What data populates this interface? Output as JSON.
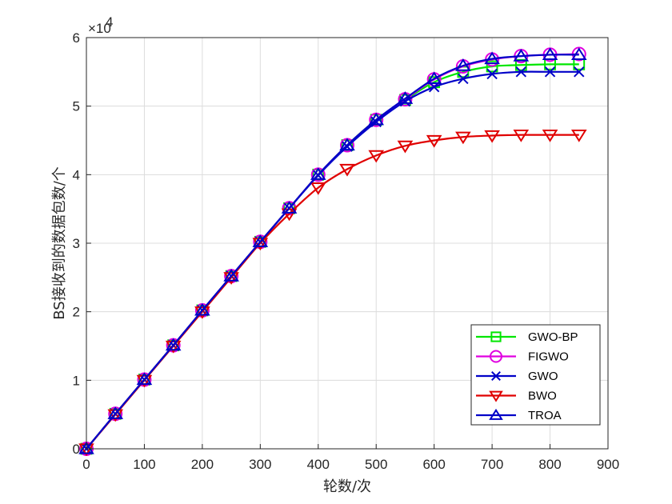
{
  "chart_data": {
    "type": "line",
    "xlabel": "轮数/次",
    "ylabel": "BS接收到的数据包数/个",
    "xlim": [
      0,
      900
    ],
    "ylim": [
      0,
      60000
    ],
    "xticks": [
      0,
      100,
      200,
      300,
      400,
      500,
      600,
      700,
      800,
      900
    ],
    "yticks": [
      0,
      1,
      2,
      3,
      4,
      5,
      6
    ],
    "y_exponent_label": "×10",
    "y_exponent_power": "4",
    "grid": true,
    "legend_position": "bottom-right",
    "x": [
      0,
      50,
      100,
      150,
      200,
      250,
      300,
      350,
      400,
      450,
      500,
      550,
      600,
      650,
      700,
      750,
      800,
      850
    ],
    "series": [
      {
        "name": "GWO-BP",
        "color": "#00e600",
        "marker": "square",
        "values": [
          0,
          5100,
          10100,
          15100,
          20200,
          25200,
          30200,
          35100,
          40000,
          44300,
          48000,
          50900,
          53500,
          55000,
          55800,
          56000,
          56100,
          56100
        ]
      },
      {
        "name": "FIGWO",
        "color": "#e000e0",
        "marker": "circle",
        "values": [
          0,
          5100,
          10100,
          15100,
          20200,
          25200,
          30200,
          35100,
          40000,
          44300,
          48000,
          51000,
          53900,
          55800,
          56800,
          57300,
          57500,
          57600
        ]
      },
      {
        "name": "GWO",
        "color": "#0000c8",
        "marker": "x",
        "values": [
          0,
          5100,
          10100,
          15100,
          20200,
          25200,
          30200,
          35100,
          39900,
          44100,
          47700,
          50700,
          52800,
          54000,
          54700,
          55000,
          55000,
          55000
        ]
      },
      {
        "name": "BWO",
        "color": "#e00000",
        "marker": "triangle-down",
        "values": [
          0,
          5000,
          10000,
          15000,
          20000,
          25000,
          30000,
          34300,
          38100,
          40800,
          42800,
          44200,
          45000,
          45500,
          45700,
          45800,
          45800,
          45800
        ]
      },
      {
        "name": "TROA",
        "color": "#0000c8",
        "marker": "triangle-up",
        "values": [
          0,
          5100,
          10100,
          15100,
          20200,
          25200,
          30200,
          35100,
          40000,
          44300,
          48000,
          51100,
          54000,
          55900,
          56900,
          57300,
          57500,
          57500
        ]
      }
    ]
  }
}
